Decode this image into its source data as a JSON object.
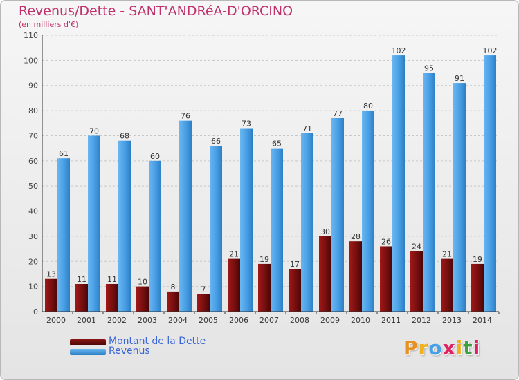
{
  "header": {
    "title": "Revenus/Dette - SANT'ANDRéA-D'ORCINO",
    "subtitle": "(en milliers d'€)"
  },
  "legend": {
    "items": [
      {
        "label": "Montant de la Dette",
        "color": "#7a1010"
      },
      {
        "label": "Revenus",
        "color": "#4aa0e6"
      }
    ]
  },
  "logo": {
    "text": "Proxiti",
    "colors": [
      "#e89020",
      "#f0b020",
      "#4aa0e6",
      "#e02060",
      "#f0b020",
      "#40a040",
      "#e02060"
    ]
  },
  "chart_data": {
    "type": "bar",
    "categories": [
      "2000",
      "2001",
      "2002",
      "2003",
      "2004",
      "2005",
      "2006",
      "2007",
      "2008",
      "2009",
      "2010",
      "2011",
      "2012",
      "2013",
      "2014"
    ],
    "series": [
      {
        "name": "Montant de la Dette",
        "values": [
          13,
          11,
          11,
          10,
          8,
          7,
          21,
          19,
          17,
          30,
          28,
          26,
          24,
          21,
          19
        ]
      },
      {
        "name": "Revenus",
        "values": [
          61,
          70,
          68,
          60,
          76,
          66,
          73,
          65,
          71,
          77,
          80,
          102,
          95,
          91,
          102
        ]
      }
    ],
    "ylim": [
      0,
      110
    ],
    "yticks": [
      0,
      10,
      20,
      30,
      40,
      50,
      60,
      70,
      80,
      90,
      100,
      110
    ],
    "grid": true,
    "data_labels": true,
    "legend_position": "bottom-left"
  }
}
